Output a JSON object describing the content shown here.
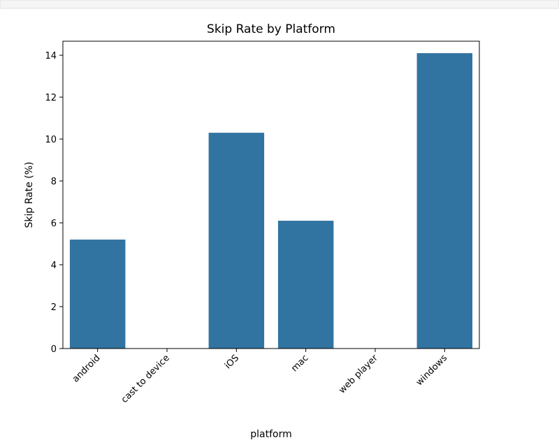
{
  "chart_data": {
    "type": "bar",
    "title": "Skip Rate by Platform",
    "x_label": "platform",
    "y_label": "Skip Rate (%)",
    "categories": [
      "android",
      "cast to device",
      "iOS",
      "mac",
      "web player",
      "windows"
    ],
    "values": [
      5.2,
      0,
      10.3,
      6.1,
      0,
      14.1
    ],
    "color": "#3274a1",
    "ylim": [
      0,
      14.67
    ],
    "yticks": [
      0,
      2,
      4,
      6,
      8,
      10,
      12,
      14
    ],
    "grid": false
  }
}
